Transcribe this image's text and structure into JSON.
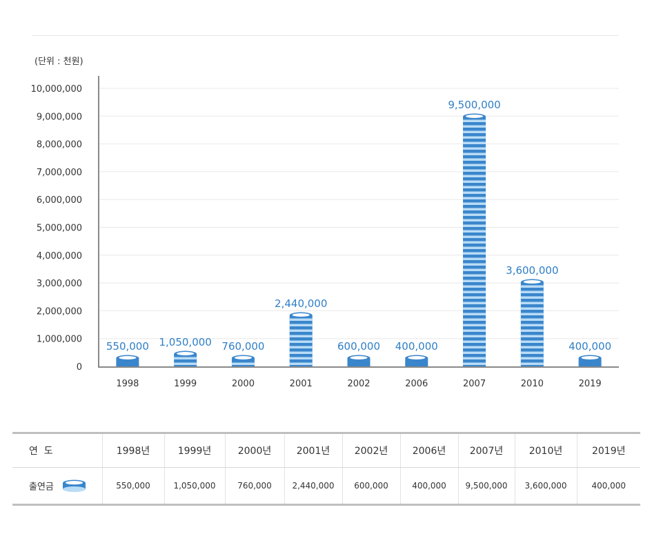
{
  "unit_label": "(단위 : 천원)",
  "chart_data": {
    "type": "bar",
    "categories": [
      "1998",
      "1999",
      "2000",
      "2001",
      "2002",
      "2006",
      "2007",
      "2010",
      "2019"
    ],
    "values": [
      550000,
      1050000,
      760000,
      2440000,
      600000,
      400000,
      9500000,
      3600000,
      400000
    ],
    "value_labels": [
      "550,000",
      "1,050,000",
      "760,000",
      "2,440,000",
      "600,000",
      "400,000",
      "9,500,000",
      "3,600,000",
      "400,000"
    ],
    "yticks": [
      "0",
      "1,000,000",
      "2,000,000",
      "3,000,000",
      "4,000,000",
      "5,000,000",
      "6,000,000",
      "7,000,000",
      "8,000,000",
      "9,000,000",
      "10,000,000"
    ],
    "ylim": [
      0,
      10000000
    ],
    "grid": true,
    "colors": {
      "coin_dark": "#3a86cc",
      "coin_light": "#b9dcf6",
      "label": "#2f7fc6",
      "axis": "#888888",
      "grid": "#e8e8e8"
    }
  },
  "table": {
    "header_label": "연  도",
    "years": [
      "1998년",
      "1999년",
      "2000년",
      "2001년",
      "2002년",
      "2006년",
      "2007년",
      "2010년",
      "2019년"
    ],
    "row_label": "출연금",
    "row_values": [
      "550,000",
      "1,050,000",
      "760,000",
      "2,440,000",
      "600,000",
      "400,000",
      "9,500,000",
      "3,600,000",
      "400,000"
    ],
    "legend_icon": "coin-stack-icon"
  }
}
